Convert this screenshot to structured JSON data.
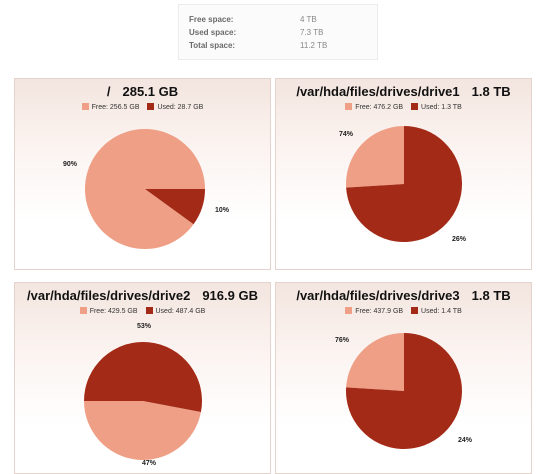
{
  "summary": {
    "free_label": "Free space:",
    "free_value": "4 TB",
    "used_label": "Used space:",
    "used_value": "7.3 TB",
    "total_label": "Total space:",
    "total_value": "11.2 TB"
  },
  "colors": {
    "free": "#ee9f86",
    "used": "#a32a16"
  },
  "chart_data": [
    {
      "type": "pie",
      "title_path": "/",
      "title_size": "285.1 GB",
      "legend": [
        {
          "label": "Free: 256.5 GB"
        },
        {
          "label": "Used: 28.7 GB"
        }
      ],
      "slices": [
        {
          "name": "Free",
          "value": 90,
          "label": "90%"
        },
        {
          "name": "Used",
          "value": 10,
          "label": "10%"
        }
      ]
    },
    {
      "type": "pie",
      "title_path": "/var/hda/files/drives/drive1",
      "title_size": "1.8 TB",
      "legend": [
        {
          "label": "Free: 476.2 GB"
        },
        {
          "label": "Used: 1.3 TB"
        }
      ],
      "slices": [
        {
          "name": "Free",
          "value": 26,
          "label": "26%"
        },
        {
          "name": "Used",
          "value": 74,
          "label": "74%"
        }
      ]
    },
    {
      "type": "pie",
      "title_path": "/var/hda/files/drives/drive2",
      "title_size": "916.9 GB",
      "legend": [
        {
          "label": "Free: 429.5 GB"
        },
        {
          "label": "Used: 487.4 GB"
        }
      ],
      "slices": [
        {
          "name": "Free",
          "value": 47,
          "label": "47%"
        },
        {
          "name": "Used",
          "value": 53,
          "label": "53%"
        }
      ]
    },
    {
      "type": "pie",
      "title_path": "/var/hda/files/drives/drive3",
      "title_size": "1.8 TB",
      "legend": [
        {
          "label": "Free: 437.9 GB"
        },
        {
          "label": "Used: 1.4 TB"
        }
      ],
      "slices": [
        {
          "name": "Free",
          "value": 24,
          "label": "24%"
        },
        {
          "name": "Used",
          "value": 76,
          "label": "76%"
        }
      ]
    }
  ]
}
